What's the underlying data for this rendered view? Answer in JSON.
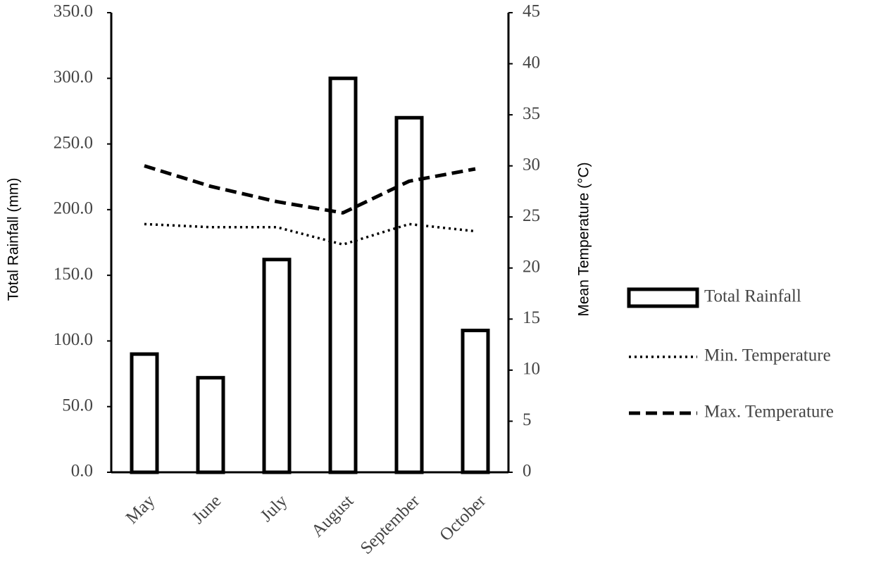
{
  "chart_data": {
    "type": "bar-line",
    "y_label": "Total Rainfall (mm)",
    "y2_label": "Mean Temperature (°C)",
    "categories": [
      "May",
      "June",
      "July",
      "August",
      "September",
      "October"
    ],
    "series": [
      {
        "name": "Total Rainfall",
        "type": "bar",
        "axis": "y",
        "color": "#000000",
        "values": [
          90,
          72,
          162,
          300,
          270,
          108
        ]
      },
      {
        "name": "Min. Temperature",
        "type": "line",
        "axis": "y2",
        "line_style": "dotted",
        "color": "#000000",
        "values": [
          24.3,
          24,
          24,
          22.3,
          24.3,
          23.6
        ]
      },
      {
        "name": "Max. Temperature",
        "type": "line",
        "axis": "y2",
        "line_style": "dashed",
        "color": "#000000",
        "values": [
          30,
          28,
          26.5,
          25.4,
          28.5,
          29.7
        ]
      }
    ],
    "ylim": [
      0,
      350
    ],
    "yticks": [
      {
        "value": 0,
        "label": "0.0"
      },
      {
        "value": 50,
        "label": "50.0"
      },
      {
        "value": 100,
        "label": "100.0"
      },
      {
        "value": 150,
        "label": "150.0"
      },
      {
        "value": 200,
        "label": "200.0"
      },
      {
        "value": 250,
        "label": "250.0"
      },
      {
        "value": 300,
        "label": "300.0"
      },
      {
        "value": 350,
        "label": "350.0"
      }
    ],
    "y2lim": [
      0,
      45
    ],
    "y2ticks": [
      0,
      5,
      10,
      15,
      20,
      25,
      30,
      35,
      40,
      45
    ],
    "grid": false,
    "legend": "right"
  }
}
